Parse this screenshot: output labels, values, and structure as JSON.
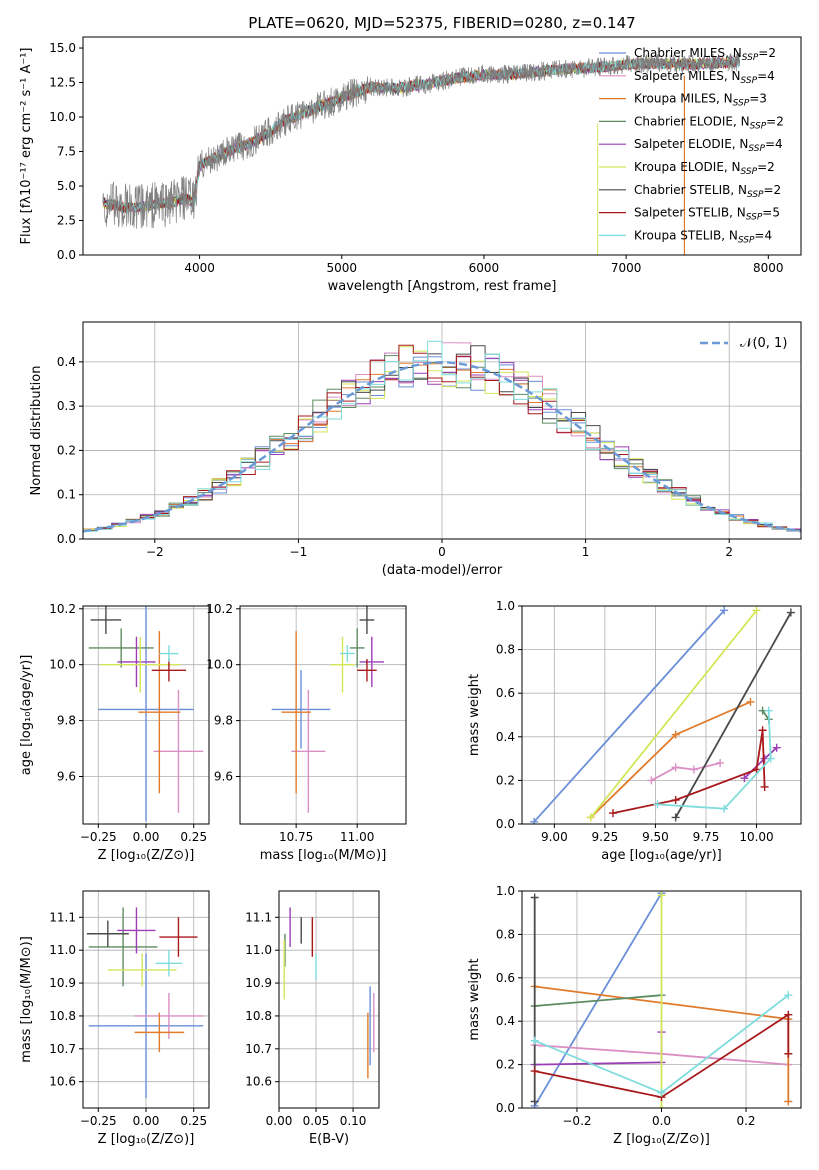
{
  "chart_data": [
    {
      "id": "spectrum",
      "type": "line",
      "title": "PLATE=0620, MJD=52375, FIBERID=0280, z=0.147",
      "xlabel": "wavelength [Angstrom, rest frame]",
      "ylabel": "Flux [fλ10⁻¹⁷ erg cm⁻² s⁻¹ A⁻¹]",
      "xlim": [
        3180,
        8230
      ],
      "ylim": [
        0,
        15.8
      ],
      "xticks": [
        4000,
        5000,
        6000,
        7000,
        8000
      ],
      "yticks": [
        "0.0",
        "2.5",
        "5.0",
        "7.5",
        "10.0",
        "12.5",
        "15.0"
      ],
      "data_color": "#808080",
      "model_color": "#7fdcdc",
      "continuum": [
        [
          3300,
          3.8
        ],
        [
          3400,
          3.6
        ],
        [
          3500,
          3.4
        ],
        [
          3600,
          3.5
        ],
        [
          3700,
          3.7
        ],
        [
          3800,
          3.8
        ],
        [
          3900,
          4.1
        ],
        [
          3960,
          3.8
        ],
        [
          4000,
          6.5
        ],
        [
          4200,
          7.5
        ],
        [
          4400,
          8.3
        ],
        [
          4600,
          9.7
        ],
        [
          4800,
          10.6
        ],
        [
          5000,
          11.4
        ],
        [
          5200,
          12.2
        ],
        [
          5400,
          12.1
        ],
        [
          5600,
          12.4
        ],
        [
          5800,
          12.8
        ],
        [
          6000,
          13.1
        ],
        [
          6200,
          13.1
        ],
        [
          6400,
          13.3
        ],
        [
          6600,
          13.5
        ],
        [
          6800,
          13.6
        ],
        [
          7000,
          13.8
        ],
        [
          7200,
          13.9
        ],
        [
          7400,
          13.8
        ],
        [
          7600,
          13.9
        ],
        [
          7800,
          14.0
        ]
      ],
      "legend": [
        {
          "label": "Chabrier MILES, N_SSP=2",
          "color": "#6a8fd8"
        },
        {
          "label": "Salpeter MILES, N_SSP=4",
          "color": "#da8fc4"
        },
        {
          "label": "Kroupa MILES, N_SSP=3",
          "color": "#e07b2b"
        },
        {
          "label": "Chabrier ELODIE, N_SSP=2",
          "color": "#5e8c62"
        },
        {
          "label": "Salpeter ELODIE, N_SSP=4",
          "color": "#9b3db5"
        },
        {
          "label": "Kroupa ELODIE, N_SSP=2",
          "color": "#d4e657"
        },
        {
          "label": "Chabrier STELIB, N_SSP=2",
          "color": "#4a4a4a"
        },
        {
          "label": "Salpeter STELIB, N_SSP=5",
          "color": "#a8191c"
        },
        {
          "label": "Kroupa STELIB, N_SSP=4",
          "color": "#7fdcdc"
        }
      ]
    },
    {
      "id": "residuals",
      "type": "line",
      "xlabel": "(data-model)/error",
      "ylabel": "Normed distribution",
      "xlim": [
        -2.5,
        2.5
      ],
      "ylim": [
        0,
        0.49
      ],
      "xticks": [
        "−2",
        "−1",
        "0",
        "1",
        "2"
      ],
      "yticks": [
        "0.0",
        "0.1",
        "0.2",
        "0.3",
        "0.4"
      ],
      "legend_label": "𝒩(0, 1)",
      "gaussian_color": "#6a9bd8"
    },
    {
      "id": "age_vs_Z",
      "type": "scatter",
      "xlabel": "Z [log₁₀(Z/Z⊙)]",
      "ylabel": "age [log₁₀(age/yr)]",
      "xlim": [
        -0.33,
        0.33
      ],
      "ylim": [
        9.43,
        10.21
      ],
      "xticks": [
        "−0.25",
        "0.00",
        "0.25"
      ],
      "yticks": [
        "9.6",
        "9.8",
        "10.0",
        "10.2"
      ],
      "points": [
        {
          "x": 0.0,
          "y": 9.84,
          "xerr": 0.25,
          "yerr": 0.4,
          "color": "#6a8fd8"
        },
        {
          "x": 0.17,
          "y": 9.69,
          "xerr": 0.13,
          "yerr": 0.22,
          "color": "#da8fc4"
        },
        {
          "x": 0.07,
          "y": 9.83,
          "xerr": 0.11,
          "yerr": 0.29,
          "color": "#e07b2b"
        },
        {
          "x": -0.13,
          "y": 10.06,
          "xerr": 0.17,
          "yerr": 0.07,
          "color": "#5e8c62"
        },
        {
          "x": -0.05,
          "y": 10.01,
          "xerr": 0.1,
          "yerr": 0.09,
          "color": "#9b3db5"
        },
        {
          "x": -0.03,
          "y": 10.0,
          "xerr": 0.21,
          "yerr": 0.1,
          "color": "#d4e657"
        },
        {
          "x": -0.21,
          "y": 10.16,
          "xerr": 0.08,
          "yerr": 0.05,
          "color": "#4a4a4a"
        },
        {
          "x": 0.12,
          "y": 9.98,
          "xerr": 0.09,
          "yerr": 0.04,
          "color": "#a8191c"
        },
        {
          "x": 0.12,
          "y": 10.04,
          "xerr": 0.05,
          "yerr": 0.03,
          "color": "#7fdcdc"
        }
      ]
    },
    {
      "id": "age_vs_mass",
      "type": "scatter",
      "xlabel": "mass [log₁₀(M/M⊙)]",
      "ylabel": "",
      "xlim": [
        10.52,
        11.2
      ],
      "ylim": [
        9.43,
        10.21
      ],
      "xticks": [
        "10.75",
        "11.00"
      ],
      "yticks": [
        "9.6",
        "9.8",
        "10.0",
        "10.2"
      ],
      "points": [
        {
          "x": 10.77,
          "y": 9.84,
          "xerr": 0.12,
          "yerr": 0.14,
          "color": "#6a8fd8"
        },
        {
          "x": 10.8,
          "y": 9.69,
          "xerr": 0.07,
          "yerr": 0.22,
          "color": "#da8fc4"
        },
        {
          "x": 10.75,
          "y": 9.83,
          "xerr": 0.06,
          "yerr": 0.29,
          "color": "#e07b2b"
        },
        {
          "x": 11.0,
          "y": 10.06,
          "xerr": 0.03,
          "yerr": 0.07,
          "color": "#5e8c62"
        },
        {
          "x": 11.06,
          "y": 10.01,
          "xerr": 0.05,
          "yerr": 0.09,
          "color": "#9b3db5"
        },
        {
          "x": 10.94,
          "y": 10.0,
          "xerr": 0.05,
          "yerr": 0.1,
          "color": "#d4e657"
        },
        {
          "x": 11.04,
          "y": 10.16,
          "xerr": 0.03,
          "yerr": 0.05,
          "color": "#4a4a4a"
        },
        {
          "x": 11.04,
          "y": 9.98,
          "xerr": 0.04,
          "yerr": 0.04,
          "color": "#a8191c"
        },
        {
          "x": 10.96,
          "y": 10.04,
          "xerr": 0.03,
          "yerr": 0.03,
          "color": "#7fdcdc"
        }
      ]
    },
    {
      "id": "weight_vs_age",
      "type": "line",
      "xlabel": "age  [log₁₀(age/yr)]",
      "ylabel": "mass weight",
      "xlim": [
        8.84,
        10.22
      ],
      "ylim": [
        0,
        1.0
      ],
      "xticks": [
        "9.00",
        "9.25",
        "9.50",
        "9.75",
        "10.00"
      ],
      "yticks": [
        "0.0",
        "0.2",
        "0.4",
        "0.6",
        "0.8",
        "1.0"
      ],
      "series": [
        {
          "color": "#6a8fd8",
          "points": [
            [
              8.9,
              0.01
            ],
            [
              9.84,
              0.98
            ]
          ]
        },
        {
          "color": "#da8fc4",
          "points": [
            [
              9.48,
              0.2
            ],
            [
              9.6,
              0.26
            ],
            [
              9.69,
              0.25
            ],
            [
              9.82,
              0.28
            ]
          ]
        },
        {
          "color": "#e07b2b",
          "points": [
            [
              9.18,
              0.03
            ],
            [
              9.6,
              0.41
            ],
            [
              9.97,
              0.56
            ]
          ]
        },
        {
          "color": "#5e8c62",
          "points": [
            [
              10.03,
              0.52
            ],
            [
              10.06,
              0.48
            ]
          ]
        },
        {
          "color": "#9b3db5",
          "points": [
            [
              9.94,
              0.21
            ],
            [
              10.04,
              0.3
            ],
            [
              10.1,
              0.35
            ]
          ]
        },
        {
          "color": "#d4e657",
          "points": [
            [
              9.18,
              0.03
            ],
            [
              10.0,
              0.98
            ]
          ]
        },
        {
          "color": "#4a4a4a",
          "points": [
            [
              9.6,
              0.03
            ],
            [
              10.17,
              0.97
            ]
          ]
        },
        {
          "color": "#a8191c",
          "points": [
            [
              9.29,
              0.05
            ],
            [
              9.6,
              0.11
            ],
            [
              10.0,
              0.25
            ],
            [
              10.03,
              0.43
            ],
            [
              10.04,
              0.17
            ]
          ]
        },
        {
          "color": "#7fdcdc",
          "points": [
            [
              9.51,
              0.09
            ],
            [
              9.84,
              0.07
            ],
            [
              10.07,
              0.3
            ],
            [
              10.06,
              0.52
            ]
          ]
        }
      ]
    },
    {
      "id": "mass_vs_Z",
      "type": "scatter",
      "xlabel": "Z [log₁₀(Z/Z⊙)]",
      "ylabel": "mass [log₁₀(M/M⊙)]",
      "xlim": [
        -0.33,
        0.33
      ],
      "ylim": [
        10.52,
        11.18
      ],
      "xticks": [
        "−0.25",
        "0.00",
        "0.25"
      ],
      "yticks": [
        "10.6",
        "10.7",
        "10.8",
        "10.9",
        "11.0",
        "11.1"
      ],
      "points": [
        {
          "x": 0.0,
          "y": 10.77,
          "xerr": 0.3,
          "yerr": 0.22,
          "color": "#6a8fd8"
        },
        {
          "x": 0.12,
          "y": 10.8,
          "xerr": 0.18,
          "yerr": 0.07,
          "color": "#da8fc4"
        },
        {
          "x": 0.07,
          "y": 10.75,
          "xerr": 0.13,
          "yerr": 0.06,
          "color": "#e07b2b"
        },
        {
          "x": -0.12,
          "y": 11.01,
          "xerr": 0.18,
          "yerr": 0.12,
          "color": "#5e8c62"
        },
        {
          "x": -0.05,
          "y": 11.06,
          "xerr": 0.1,
          "yerr": 0.07,
          "color": "#9b3db5"
        },
        {
          "x": -0.02,
          "y": 10.94,
          "xerr": 0.18,
          "yerr": 0.05,
          "color": "#d4e657"
        },
        {
          "x": -0.2,
          "y": 11.05,
          "xerr": 0.11,
          "yerr": 0.04,
          "color": "#4a4a4a"
        },
        {
          "x": 0.17,
          "y": 11.04,
          "xerr": 0.1,
          "yerr": 0.06,
          "color": "#a8191c"
        },
        {
          "x": 0.12,
          "y": 10.96,
          "xerr": 0.07,
          "yerr": 0.04,
          "color": "#7fdcdc"
        }
      ]
    },
    {
      "id": "mass_vs_ebv",
      "type": "scatter",
      "xlabel": "E(B-V)",
      "ylabel": "",
      "xlim": [
        0.0,
        0.135
      ],
      "ylim": [
        10.52,
        11.18
      ],
      "xticks": [
        "0.00",
        "0.05",
        "0.10"
      ],
      "yticks": [
        "10.6",
        "10.7",
        "10.8",
        "10.9",
        "11.0",
        "11.1"
      ],
      "points": [
        {
          "x": 0.123,
          "y": 10.77,
          "yerr": 0.12,
          "color": "#6a8fd8"
        },
        {
          "x": 0.128,
          "y": 10.78,
          "yerr": 0.09,
          "color": "#da8fc4"
        },
        {
          "x": 0.12,
          "y": 10.71,
          "yerr": 0.1,
          "color": "#e07b2b"
        },
        {
          "x": 0.008,
          "y": 11.0,
          "yerr": 0.05,
          "color": "#5e8c62"
        },
        {
          "x": 0.015,
          "y": 11.07,
          "yerr": 0.06,
          "color": "#9b3db5"
        },
        {
          "x": 0.007,
          "y": 10.94,
          "yerr": 0.09,
          "color": "#d4e657"
        },
        {
          "x": 0.03,
          "y": 11.06,
          "yerr": 0.04,
          "color": "#4a4a4a"
        },
        {
          "x": 0.045,
          "y": 11.04,
          "yerr": 0.06,
          "color": "#a8191c"
        },
        {
          "x": 0.05,
          "y": 10.95,
          "yerr": 0.04,
          "color": "#7fdcdc"
        }
      ]
    },
    {
      "id": "weight_vs_Z",
      "type": "line",
      "xlabel": "Z [log₁₀(Z/Z⊙)]",
      "ylabel": "mass weight",
      "xlim": [
        -0.33,
        0.33
      ],
      "ylim": [
        0,
        1.0
      ],
      "xticks": [
        "−0.2",
        "0.0",
        "0.2"
      ],
      "yticks": [
        "0.0",
        "0.2",
        "0.4",
        "0.6",
        "0.8",
        "1.0"
      ],
      "series": [
        {
          "color": "#6a8fd8",
          "points": [
            [
              -0.3,
              0.01
            ],
            [
              0.0,
              0.99
            ]
          ]
        },
        {
          "color": "#da8fc4",
          "points": [
            [
              -0.3,
              0.29
            ],
            [
              0.0,
              0.25
            ],
            [
              0.3,
              0.2
            ]
          ]
        },
        {
          "color": "#e07b2b",
          "points": [
            [
              -0.3,
              0.56
            ],
            [
              0.3,
              0.41
            ],
            [
              0.3,
              0.03
            ]
          ]
        },
        {
          "color": "#5e8c62",
          "points": [
            [
              -0.3,
              0.47
            ],
            [
              0.0,
              0.52
            ]
          ]
        },
        {
          "color": "#9b3db5",
          "points": [
            [
              -0.3,
              0.2
            ],
            [
              0.0,
              0.21
            ],
            [
              0.0,
              0.35
            ]
          ]
        },
        {
          "color": "#d4e657",
          "points": [
            [
              0.0,
              0.0
            ],
            [
              0.0,
              0.98
            ]
          ]
        },
        {
          "color": "#4a4a4a",
          "points": [
            [
              -0.3,
              0.03
            ],
            [
              -0.3,
              0.97
            ]
          ]
        },
        {
          "color": "#a8191c",
          "points": [
            [
              -0.3,
              0.17
            ],
            [
              0.0,
              0.05
            ],
            [
              0.3,
              0.43
            ],
            [
              0.3,
              0.25
            ]
          ]
        },
        {
          "color": "#7fdcdc",
          "points": [
            [
              -0.3,
              0.31
            ],
            [
              0.0,
              0.07
            ],
            [
              0.3,
              0.52
            ]
          ]
        }
      ]
    }
  ]
}
